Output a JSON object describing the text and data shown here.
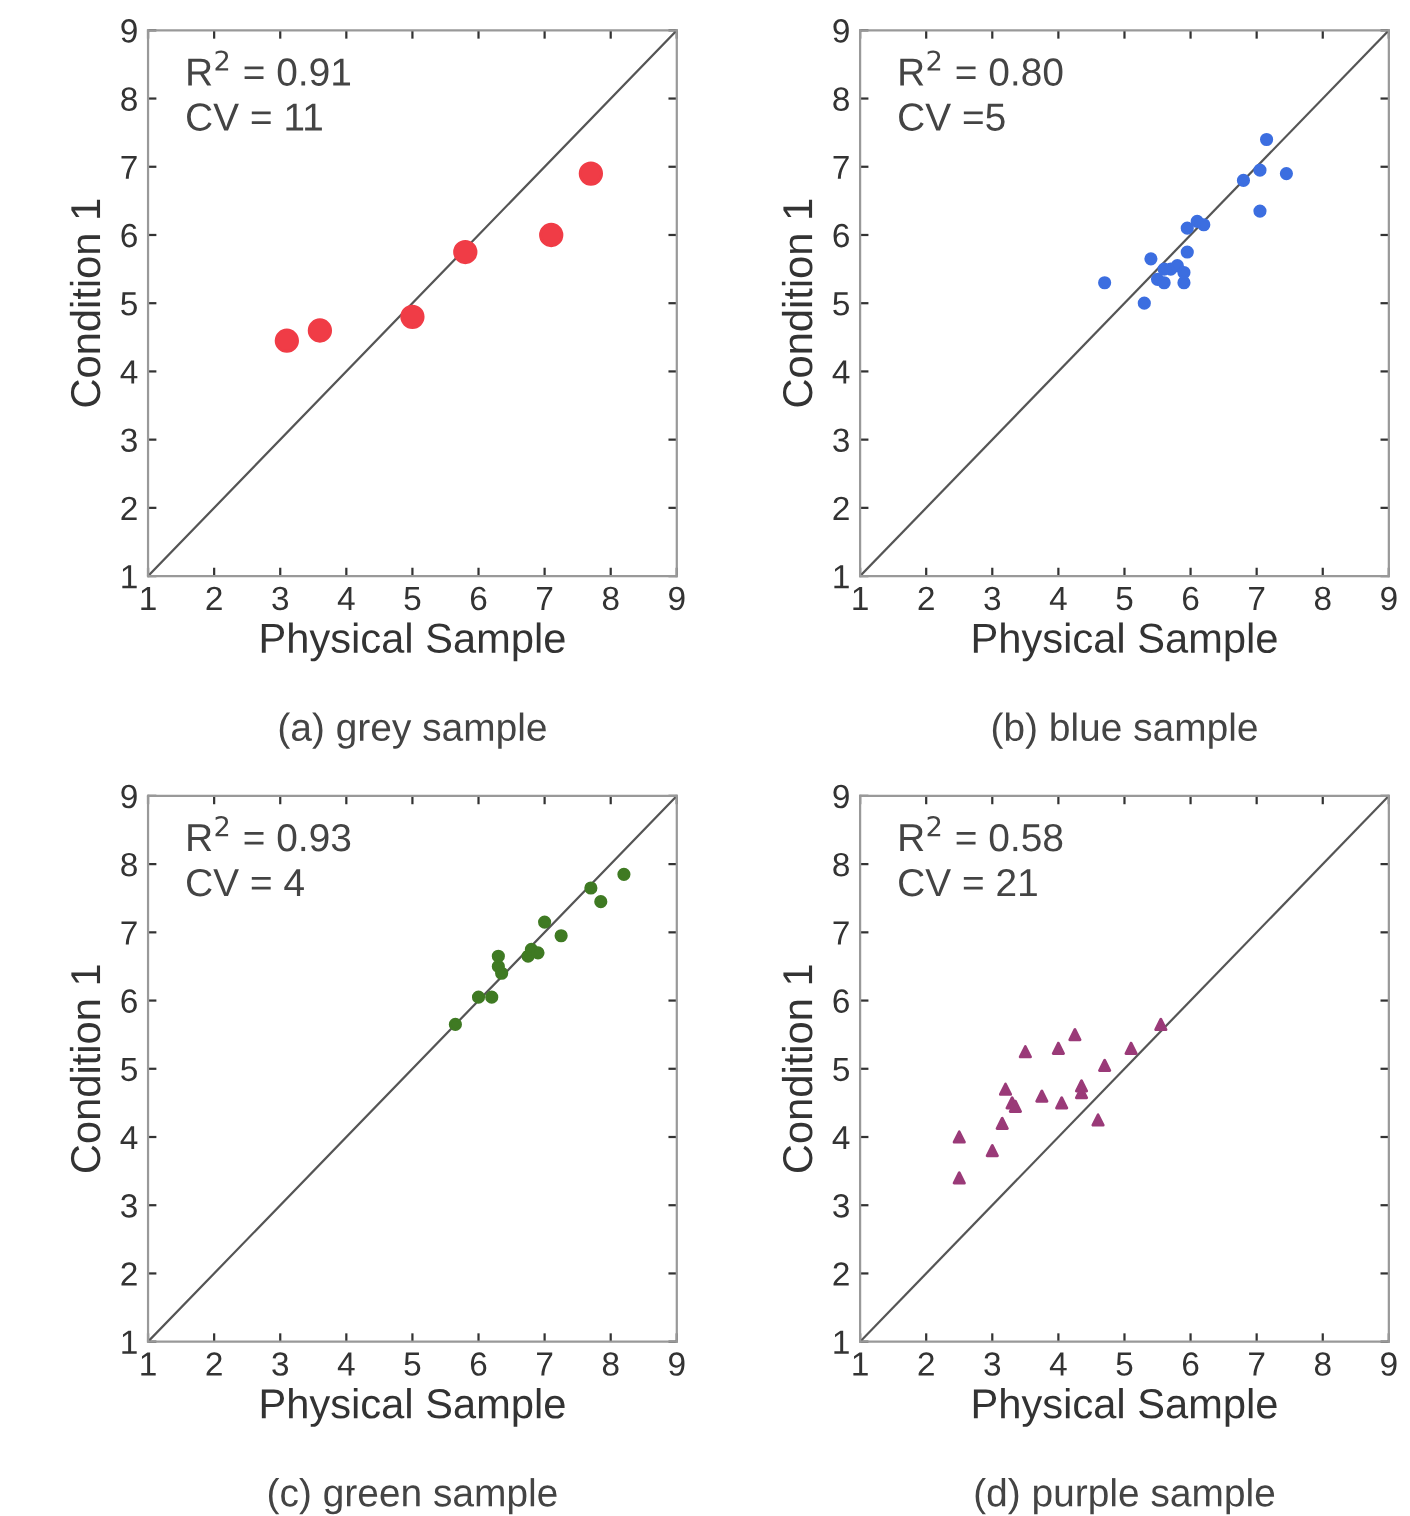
{
  "chart_data": [
    {
      "type": "scatter",
      "xlabel": "Physical Sample",
      "ylabel": "Condition 1",
      "annotations": [
        "R$^{2}$ = 0.91\nCV = 11",
        "(a) grey sample"
      ],
      "xlim": [
        1,
        9
      ],
      "ylim": [
        1,
        9
      ],
      "xticks": [
        1,
        2,
        3,
        4,
        5,
        6,
        7,
        8,
        9
      ],
      "yticks": [
        1,
        2,
        3,
        4,
        5,
        6,
        7,
        8,
        9
      ],
      "grid": false,
      "legend": false,
      "series": [
        {
          "type": "line",
          "color": "#555555",
          "x": [
            1,
            9
          ],
          "values": [
            1,
            9
          ],
          "marker": "none"
        },
        {
          "type": "scatter",
          "color": "#f03c46",
          "marker": "circle",
          "x": [
            3.1,
            3.6,
            5.0,
            5.8,
            7.1,
            7.7
          ],
          "values": [
            4.45,
            4.6,
            4.8,
            5.75,
            6.0,
            6.9
          ]
        }
      ]
    },
    {
      "type": "scatter",
      "xlabel": "Physical Sample",
      "ylabel": "Condition 1",
      "annotations": [
        "R$^{2}$ = 0.80\nCV =5",
        "(b) blue sample"
      ],
      "xlim": [
        1,
        9
      ],
      "ylim": [
        1,
        9
      ],
      "xticks": [
        1,
        2,
        3,
        4,
        5,
        6,
        7,
        8,
        9
      ],
      "yticks": [
        1,
        2,
        3,
        4,
        5,
        6,
        7,
        8,
        9
      ],
      "grid": false,
      "legend": false,
      "series": [
        {
          "type": "line",
          "color": "#555555",
          "x": [
            1,
            9
          ],
          "values": [
            1,
            9
          ],
          "marker": "none"
        },
        {
          "type": "scatter",
          "color": "#3c6ee0",
          "marker": "circle",
          "x": [
            4.7,
            5.3,
            5.4,
            5.5,
            5.6,
            5.6,
            5.7,
            5.8,
            5.9,
            5.9,
            5.95,
            5.95,
            6.1,
            6.2,
            6.8,
            7.05,
            7.05,
            7.15,
            7.45
          ],
          "values": [
            5.3,
            5.0,
            5.65,
            5.35,
            5.3,
            5.5,
            5.5,
            5.55,
            5.3,
            5.45,
            5.75,
            6.1,
            6.2,
            6.15,
            6.8,
            6.95,
            6.35,
            7.4,
            6.9
          ]
        }
      ]
    },
    {
      "type": "scatter",
      "xlabel": "Physical Sample",
      "ylabel": "Condition 1",
      "annotations": [
        "R$^{2}$ = 0.93\nCV = 4",
        "(c) green sample"
      ],
      "xlim": [
        1,
        9
      ],
      "ylim": [
        1,
        9
      ],
      "xticks": [
        1,
        2,
        3,
        4,
        5,
        6,
        7,
        8,
        9
      ],
      "yticks": [
        1,
        2,
        3,
        4,
        5,
        6,
        7,
        8,
        9
      ],
      "grid": false,
      "legend": false,
      "series": [
        {
          "type": "line",
          "color": "#555555",
          "x": [
            1,
            9
          ],
          "values": [
            1,
            9
          ],
          "marker": "none"
        },
        {
          "type": "scatter",
          "color": "#3f7a23",
          "marker": "circle",
          "x": [
            5.65,
            6.0,
            6.2,
            6.3,
            6.3,
            6.35,
            6.75,
            6.8,
            6.9,
            7.0,
            7.25,
            7.7,
            7.85,
            8.2
          ],
          "values": [
            5.65,
            6.05,
            6.05,
            6.5,
            6.65,
            6.4,
            6.65,
            6.75,
            6.7,
            7.15,
            6.95,
            7.65,
            7.45,
            7.85
          ]
        }
      ]
    },
    {
      "type": "scatter",
      "xlabel": "Physical Sample",
      "ylabel": "Condition 1",
      "annotations": [
        "R$^{2}$ = 0.58\nCV = 21",
        "(d) purple sample"
      ],
      "xlim": [
        1,
        9
      ],
      "ylim": [
        1,
        9
      ],
      "xticks": [
        1,
        2,
        3,
        4,
        5,
        6,
        7,
        8,
        9
      ],
      "yticks": [
        1,
        2,
        3,
        4,
        5,
        6,
        7,
        8,
        9
      ],
      "grid": false,
      "legend": false,
      "series": [
        {
          "type": "line",
          "color": "#555555",
          "x": [
            1,
            9
          ],
          "values": [
            1,
            9
          ],
          "marker": "none"
        },
        {
          "type": "scatter",
          "color": "#9a3a78",
          "marker": "triangle",
          "x": [
            2.5,
            2.5,
            3.0,
            3.15,
            3.2,
            3.3,
            3.35,
            3.5,
            3.75,
            4.0,
            4.05,
            4.25,
            4.35,
            4.35,
            4.6,
            4.7,
            5.1,
            5.55
          ],
          "values": [
            4.0,
            3.4,
            3.8,
            4.2,
            4.7,
            4.5,
            4.45,
            5.25,
            4.6,
            5.3,
            4.5,
            5.5,
            4.65,
            4.75,
            4.25,
            5.05,
            5.3,
            5.65
          ]
        }
      ]
    }
  ]
}
